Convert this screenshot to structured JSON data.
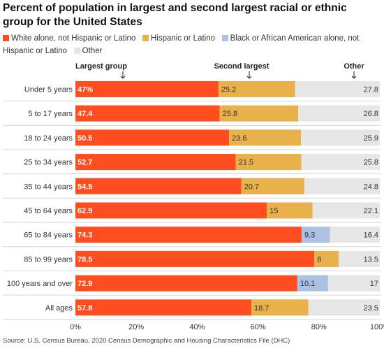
{
  "title": "Percent of population in largest and second largest racial or ethnic group for the United States",
  "source": "Source: U.S. Census Bureau, 2020 Census Demographic and Housing Characteristics File (DHC)",
  "colors": {
    "white": "#ff4d1f",
    "hispanic": "#e8b14a",
    "black": "#abc1e4",
    "other": "#e6e6e6"
  },
  "legend": [
    {
      "label": "White alone, not Hispanic or Latino",
      "color": "#ff4d1f"
    },
    {
      "label": "Hispanic or Latino",
      "color": "#e8b14a"
    },
    {
      "label": "Black or African American alone, not Hispanic or Latino",
      "color": "#abc1e4"
    },
    {
      "label": "Other",
      "color": "#e6e6e6"
    }
  ],
  "annotations": {
    "largest": "Largest group",
    "second": "Second largest",
    "other": "Other"
  },
  "chart_data": {
    "type": "bar",
    "orientation": "horizontal",
    "stacked": true,
    "categories": [
      "Under 5 years",
      "5 to 17 years",
      "18 to 24 years",
      "25 to 34 years",
      "35 to 44 years",
      "45 to 64 years",
      "65 to 84 years",
      "85 to 99 years",
      "100 years and over",
      "All ages"
    ],
    "value_labels": {
      "largest": [
        "47%",
        "47.4",
        "50.5",
        "52.7",
        "54.5",
        "62.9",
        "74.3",
        "78.5",
        "72.9",
        "57.8"
      ],
      "second": [
        "25.2",
        "25.8",
        "23.6",
        "21.5",
        "20.7",
        "15",
        "9.3",
        "8",
        "10.1",
        "18.7"
      ],
      "other": [
        "27.8",
        "26.8",
        "25.9",
        "25.8",
        "24.8",
        "22.1",
        "16.4",
        "13.5",
        "17",
        "23.5"
      ]
    },
    "series": [
      {
        "name": "White alone, not Hispanic or Latino",
        "values": [
          47,
          47.4,
          50.5,
          52.7,
          54.5,
          62.9,
          74.3,
          78.5,
          72.9,
          57.8
        ]
      },
      {
        "name": "Hispanic or Latino",
        "values": [
          25.2,
          25.8,
          23.6,
          21.5,
          20.7,
          15,
          null,
          8,
          null,
          18.7
        ]
      },
      {
        "name": "Black or African American alone, not Hispanic or Latino",
        "values": [
          null,
          null,
          null,
          null,
          null,
          null,
          9.3,
          null,
          10.1,
          null
        ]
      },
      {
        "name": "Other",
        "values": [
          27.8,
          26.8,
          25.9,
          25.8,
          24.8,
          22.1,
          16.4,
          13.5,
          17,
          23.5
        ]
      }
    ],
    "xlim": [
      0,
      100
    ],
    "xticks": [
      "0%",
      "20%",
      "40%",
      "60%",
      "80%",
      "100%"
    ],
    "grid": false,
    "legend_position": "top"
  }
}
